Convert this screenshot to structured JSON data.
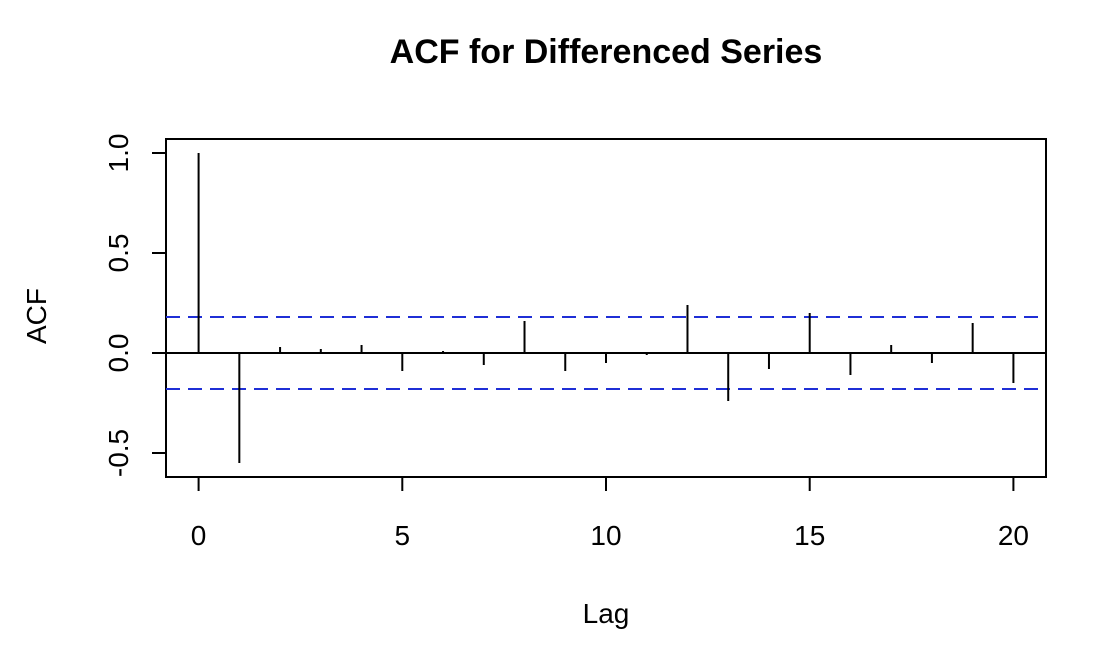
{
  "chart_data": {
    "type": "bar",
    "title": "ACF for Differenced Series",
    "xlabel": "Lag",
    "ylabel": "ACF",
    "x": [
      0,
      1,
      2,
      3,
      4,
      5,
      6,
      7,
      8,
      9,
      10,
      11,
      12,
      13,
      14,
      15,
      16,
      17,
      18,
      19,
      20
    ],
    "values": [
      1.0,
      -0.55,
      0.03,
      0.02,
      0.04,
      -0.09,
      0.01,
      -0.06,
      0.16,
      -0.09,
      -0.05,
      -0.01,
      0.24,
      -0.24,
      -0.08,
      0.2,
      -0.11,
      0.04,
      -0.05,
      0.15,
      -0.15
    ],
    "confidence_bounds": [
      0.18,
      -0.18
    ],
    "xlim": [
      -0.8,
      20.8
    ],
    "ylim": [
      -0.62,
      1.07
    ],
    "x_ticks": [
      0,
      5,
      10,
      15,
      20
    ],
    "x_tick_labels": [
      "0",
      "5",
      "10",
      "15",
      "20"
    ],
    "y_ticks": [
      -0.5,
      0.0,
      0.5,
      1.0
    ],
    "y_tick_labels": [
      "-0.5",
      "0.0",
      "0.5",
      "1.0"
    ],
    "grid": false,
    "colors": {
      "bars": "#000000",
      "zero_line": "#000000",
      "confidence": "#1f2fd6",
      "frame": "#000000"
    }
  }
}
